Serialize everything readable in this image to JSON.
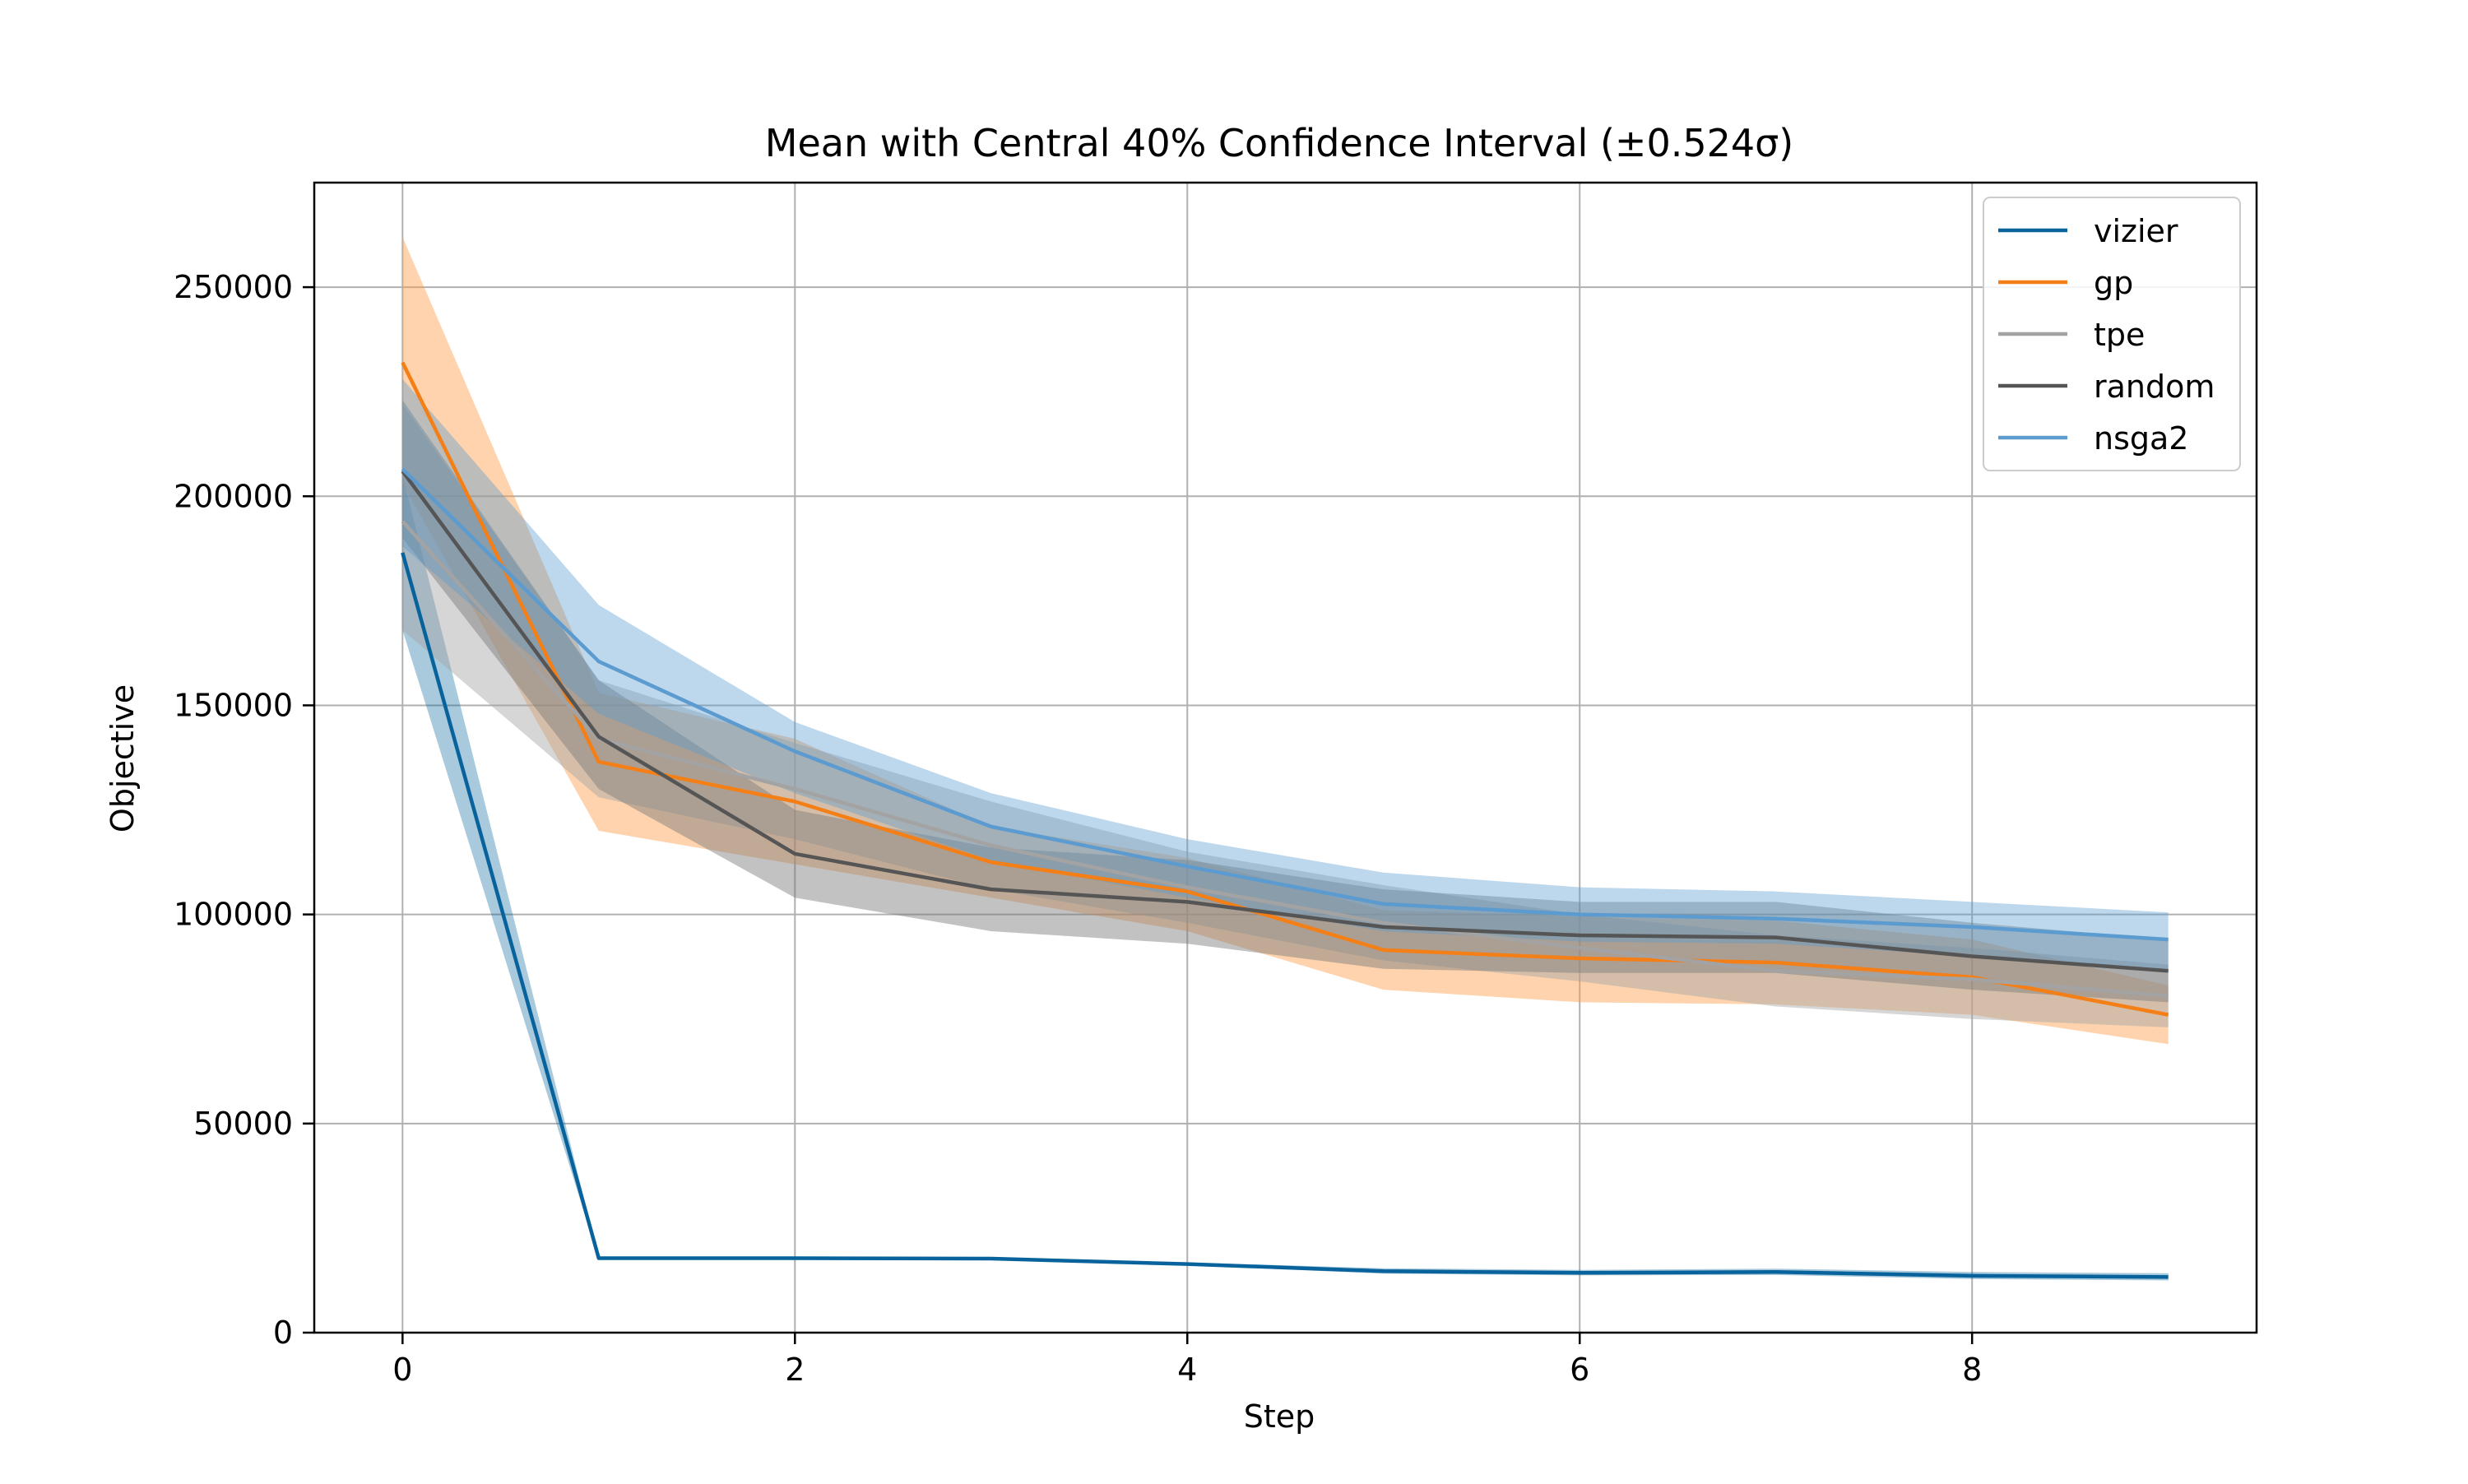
{
  "chart_data": {
    "type": "line",
    "title": "Mean with Central 40% Confidence Interval (±0.524σ)",
    "xlabel": "Step",
    "ylabel": "Objective",
    "xlim": [
      -0.45,
      9.45
    ],
    "ylim": [
      0,
      275000
    ],
    "xticks": [
      0,
      2,
      4,
      6,
      8
    ],
    "yticks": [
      0,
      50000,
      100000,
      150000,
      200000,
      250000
    ],
    "grid": true,
    "legend_position": "top-right",
    "x": [
      0,
      1,
      2,
      3,
      4,
      5,
      6,
      7,
      8,
      9
    ],
    "series": [
      {
        "name": "vizier",
        "color": "#08639c",
        "band_color": "#08639c",
        "band_opacity": 0.35,
        "mean": [
          186500,
          17800,
          17800,
          17700,
          16400,
          14700,
          14300,
          14500,
          13600,
          13300
        ],
        "lower": [
          168000,
          17500,
          17500,
          17400,
          16100,
          14100,
          13700,
          13800,
          12800,
          12500
        ],
        "upper": [
          205000,
          18100,
          18100,
          18000,
          16800,
          15400,
          15000,
          15300,
          14500,
          14200
        ]
      },
      {
        "name": "gp",
        "color": "#f47f17",
        "band_color": "#fd9e4a",
        "band_opacity": 0.45,
        "mean": [
          232000,
          136500,
          127000,
          112500,
          105500,
          91500,
          89500,
          88500,
          85000,
          76000
        ],
        "lower": [
          203000,
          120000,
          112000,
          104000,
          96000,
          82000,
          79000,
          78500,
          76000,
          69000
        ],
        "upper": [
          262000,
          153000,
          142000,
          121000,
          113500,
          101000,
          99500,
          98500,
          94000,
          83000
        ]
      },
      {
        "name": "tpe",
        "color": "#a3a3a3",
        "band_color": "#a3a3a3",
        "band_opacity": 0.45,
        "mean": [
          194000,
          142000,
          130000,
          116500,
          106500,
          98000,
          92000,
          86500,
          84500,
          80500
        ],
        "lower": [
          168000,
          128000,
          118000,
          106000,
          98000,
          89000,
          84000,
          78000,
          75000,
          73000
        ],
        "upper": [
          222000,
          156000,
          141000,
          127000,
          115000,
          107000,
          100000,
          95000,
          92000,
          88000
        ]
      },
      {
        "name": "random",
        "color": "#555555",
        "band_color": "#777777",
        "band_opacity": 0.45,
        "mean": [
          206000,
          142500,
          114500,
          106000,
          103000,
          97000,
          95000,
          94500,
          90000,
          86500
        ],
        "lower": [
          190000,
          130000,
          104000,
          96000,
          93000,
          87000,
          86000,
          86000,
          82000,
          79000
        ],
        "upper": [
          223000,
          156000,
          125000,
          116000,
          113000,
          106000,
          103000,
          103000,
          98000,
          94000
        ]
      },
      {
        "name": "nsga2",
        "color": "#5b9bd0",
        "band_color": "#5b9bd0",
        "band_opacity": 0.4,
        "mean": [
          206500,
          160500,
          139000,
          121000,
          111500,
          102500,
          100000,
          99000,
          97000,
          94000
        ],
        "lower": [
          188000,
          148000,
          129000,
          113000,
          104000,
          96000,
          93500,
          93000,
          90000,
          87000
        ],
        "upper": [
          228000,
          174000,
          146000,
          129000,
          118000,
          110000,
          106500,
          105500,
          103000,
          100500
        ]
      }
    ]
  }
}
